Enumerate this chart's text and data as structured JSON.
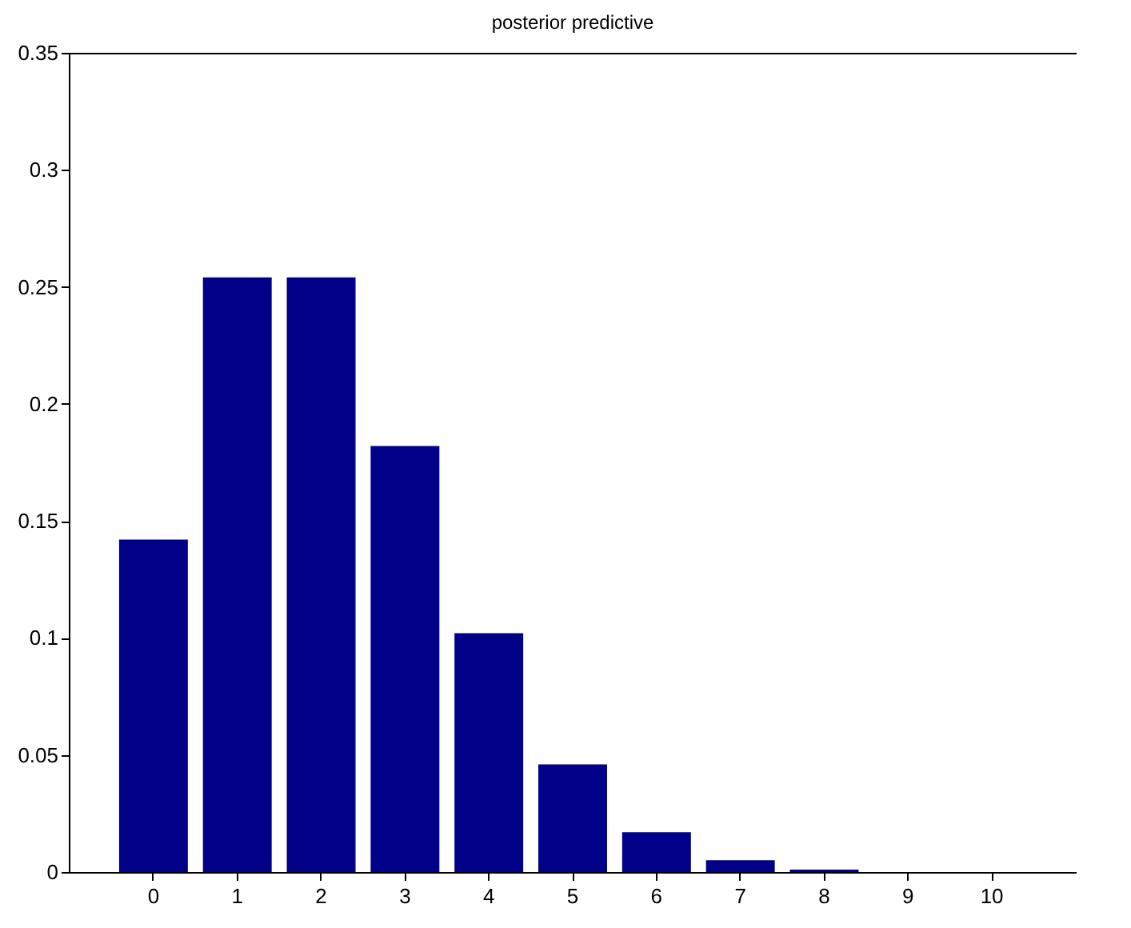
{
  "chart_data": {
    "type": "bar",
    "title": "posterior predictive",
    "categories": [
      "0",
      "1",
      "2",
      "3",
      "4",
      "5",
      "6",
      "7",
      "8",
      "9",
      "10"
    ],
    "values": [
      0.142,
      0.254,
      0.254,
      0.182,
      0.102,
      0.046,
      0.017,
      0.005,
      0.001,
      0,
      0
    ],
    "color": "#000088",
    "ylim": [
      0,
      0.35
    ],
    "yticks": [
      0,
      0.05,
      0.1,
      0.15,
      0.2,
      0.25,
      0.3,
      0.35
    ]
  }
}
